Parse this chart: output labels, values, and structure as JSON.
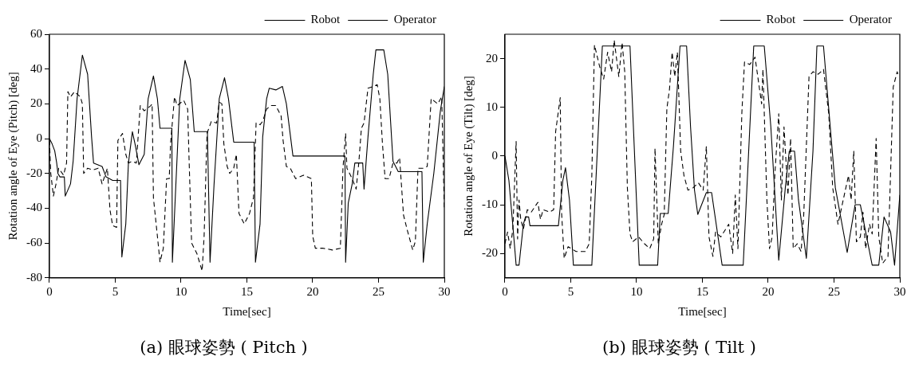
{
  "chart_data": [
    {
      "type": "line",
      "title": "(a) 眼球姿勢 ( Pitch )",
      "xlabel": "Time[sec]",
      "ylabel": "Rotation angle of Eye (Pitch) [deg]",
      "xlim": [
        0,
        30
      ],
      "xticks": [
        0,
        5,
        10,
        15,
        20,
        25,
        30
      ],
      "ylim": [
        -80,
        60
      ],
      "yticks": [
        -80,
        -60,
        -40,
        -20,
        0,
        20,
        40,
        60
      ],
      "grid": false,
      "legend": "top right",
      "marker": "none",
      "series": [
        {
          "name": "Robot",
          "color": "#000000",
          "line_style": "solid",
          "x": [
            0,
            0.2,
            0.4,
            0.55,
            0.64,
            0.8,
            1.13,
            1.2,
            1.6,
            1.8,
            2.1,
            2.5,
            2.9,
            3.2,
            3.35,
            4,
            4.3,
            4.8,
            5.4,
            5.5,
            5.8,
            6,
            6.3,
            6.5,
            6.8,
            7.2,
            7.5,
            7.9,
            8.2,
            8.4,
            9.3,
            9.34,
            9.6,
            9.9,
            10.3,
            10.7,
            11,
            12,
            12.2,
            12.5,
            12.9,
            13.3,
            13.6,
            14,
            15.55,
            15.65,
            16,
            16.2,
            16.5,
            16.7,
            17.2,
            17.7,
            18,
            18.5,
            22.45,
            22.5,
            22.7,
            23,
            23.2,
            23.8,
            23.9,
            24.2,
            24.6,
            24.8,
            25.4,
            25.7,
            26.1,
            26.5,
            26.8,
            28.3,
            28.4,
            28.7,
            29.2,
            29.7,
            30
          ],
          "values": [
            0,
            -3,
            -7,
            -14,
            -20,
            -22,
            -22,
            -33,
            -26,
            -13,
            23,
            48,
            37,
            1,
            -14,
            -16,
            -22,
            -24,
            -24,
            -68,
            -49,
            -14,
            4,
            -3,
            -15,
            -9,
            23,
            36,
            23,
            6,
            6,
            -71,
            -27,
            23,
            45,
            34,
            4,
            4,
            -71,
            -27,
            23,
            35,
            23,
            -2,
            -2,
            -71,
            -49,
            1,
            23,
            29,
            28,
            30,
            20,
            -10,
            -10,
            -71,
            -37,
            -26,
            -14,
            -14,
            -29,
            1,
            37,
            51,
            51,
            37,
            -13,
            -19,
            -19,
            -19,
            -71,
            -49,
            -20,
            16,
            30
          ]
        },
        {
          "name": "Operator",
          "color": "#000000",
          "line_style": "dashed",
          "x": [
            0,
            0.1,
            0.3,
            0.5,
            0.7,
            1.07,
            1.3,
            1.4,
            1.6,
            1.9,
            2.35,
            2.5,
            2.6,
            2.9,
            3.3,
            3.7,
            4,
            4.4,
            4.6,
            4.8,
            5.1,
            5.2,
            5.55,
            5.8,
            6,
            6.3,
            6.6,
            6.9,
            7.2,
            7.7,
            7.8,
            7.9,
            8.2,
            8.4,
            8.65,
            8.9,
            9.1,
            9.2,
            9.5,
            9.7,
            10.2,
            10.5,
            10.6,
            10.8,
            11.2,
            11.6,
            11.75,
            11.97,
            12.3,
            12.7,
            12.9,
            13.1,
            13.25,
            13.5,
            13.7,
            14,
            14.2,
            14.4,
            14.8,
            15.2,
            15.5,
            15.7,
            16,
            16.2,
            16.5,
            16.8,
            17.2,
            17.6,
            17.75,
            18,
            18.3,
            18.7,
            19.3,
            19.9,
            20,
            20.2,
            20.8,
            21.5,
            22.1,
            22.3,
            22.5,
            22.6,
            23,
            23.3,
            23.5,
            23.7,
            23.9,
            24.2,
            24.6,
            24.9,
            25.1,
            25.3,
            25.5,
            25.8,
            26.1,
            26.4,
            26.6,
            26.9,
            27.2,
            27.6,
            27.8,
            28,
            28.4,
            28.7,
            29,
            29.5,
            29.8,
            30
          ],
          "values": [
            -1,
            -20,
            -33,
            -26,
            -17,
            -21,
            -14,
            27,
            24,
            27,
            24,
            20,
            -20,
            -17,
            -18,
            -17,
            -26,
            -17,
            -41,
            -50,
            -51,
            -1,
            3,
            -9,
            -14,
            -13,
            -14,
            19,
            16,
            19,
            20,
            -34,
            -56,
            -71,
            -63,
            -23,
            -23,
            -3,
            24,
            19,
            22,
            17,
            -10,
            -60,
            -66,
            -76,
            -56,
            3,
            10,
            9,
            21,
            20,
            -3,
            -16,
            -20,
            -17,
            -9,
            -43,
            -49,
            -43,
            -34,
            9,
            8,
            10,
            17,
            19,
            19,
            13,
            -1,
            -16,
            -17,
            -23,
            -21,
            -23,
            -56,
            -63,
            -63,
            -64,
            -63,
            -17,
            3,
            -17,
            -23,
            -29,
            -14,
            6,
            9,
            29,
            30,
            31,
            23,
            -3,
            -23,
            -23,
            -14,
            -14,
            -11,
            -44,
            -53,
            -64,
            -59,
            -17,
            -17,
            -16,
            23,
            20,
            24,
            -41
          ]
        }
      ]
    },
    {
      "type": "line",
      "title": "(b) 眼球姿勢 ( Tilt )",
      "xlabel": "Time[sec]",
      "ylabel": "Rotation angle of Eye (Tilt) [deg]",
      "xlim": [
        0,
        30
      ],
      "xticks": [
        0,
        5,
        10,
        15,
        20,
        25,
        30
      ],
      "ylim": [
        -25,
        25
      ],
      "yticks": [
        -20,
        -10,
        0,
        10,
        20
      ],
      "grid": false,
      "legend": "top right",
      "marker": "none",
      "series": [
        {
          "name": "Robot",
          "color": "#000000",
          "line_style": "solid",
          "x": [
            0,
            0.3,
            0.64,
            0.85,
            1.07,
            1.4,
            1.56,
            1.8,
            1.9,
            4.06,
            4.4,
            4.6,
            4.9,
            5.2,
            6.6,
            7.4,
            9.5,
            10.2,
            11.6,
            11.8,
            12.4,
            12.8,
            13.3,
            13.8,
            14.1,
            14.4,
            14.65,
            15.3,
            15.7,
            16.5,
            18.1,
            18.9,
            19.7,
            20.2,
            20.8,
            21.3,
            21.6,
            22,
            22.3,
            22.9,
            23.4,
            23.7,
            24.2,
            25.1,
            26,
            26.6,
            27,
            27.9,
            28.4,
            28.8,
            29.3,
            29.6,
            30
          ],
          "values": [
            0,
            -5,
            -15.6,
            -22.4,
            -22.4,
            -14,
            -12.5,
            -12.5,
            -14.3,
            -14.3,
            -5,
            -2.4,
            -9,
            -22.4,
            -22.4,
            22.6,
            22.6,
            -22.4,
            -22.4,
            -11.8,
            -11.8,
            2,
            22.6,
            22.6,
            6,
            -7,
            -12,
            -7.5,
            -7.5,
            -22.4,
            -22.4,
            22.6,
            22.6,
            6,
            -21.4,
            -6.5,
            1,
            1,
            -9,
            -21,
            1,
            22.6,
            22.6,
            -6.5,
            -19.8,
            -10,
            -10,
            -22.4,
            -22.4,
            -12.5,
            -15.6,
            -22.4,
            -8
          ]
        },
        {
          "name": "Operator",
          "color": "#000000",
          "line_style": "dashed",
          "x": [
            0,
            0.2,
            0.4,
            0.6,
            0.85,
            0.96,
            1.07,
            1.2,
            1.4,
            1.7,
            2,
            2.5,
            2.7,
            2.9,
            3.4,
            3.7,
            3.85,
            4.2,
            4.3,
            4.5,
            4.8,
            5.4,
            6.1,
            6.4,
            6.6,
            6.8,
            7.2,
            7.5,
            7.8,
            8.1,
            8.3,
            8.65,
            8.9,
            9.1,
            9.3,
            9.5,
            9.7,
            10.15,
            10.6,
            11,
            11.3,
            11.4,
            11.65,
            11.9,
            12.1,
            12.3,
            12.5,
            12.7,
            12.9,
            13.1,
            13.35,
            13.6,
            13.9,
            14.3,
            14.7,
            15.06,
            15.3,
            15.5,
            15.8,
            16,
            16.4,
            17,
            17.3,
            17.5,
            17.7,
            18,
            18.2,
            18.6,
            19,
            19.5,
            19.6,
            19.9,
            20.1,
            20.3,
            20.5,
            20.8,
            21,
            21.2,
            21.5,
            21.7,
            21.9,
            22.2,
            22.5,
            22.7,
            23.1,
            23.4,
            23.8,
            24.2,
            24.6,
            24.9,
            25.3,
            25.7,
            26.1,
            26.3,
            26.5,
            26.7,
            27,
            27.2,
            27.4,
            27.7,
            27.9,
            28.2,
            28.4,
            28.7,
            29.1,
            29.5,
            29.8,
            29.9
          ],
          "values": [
            -18,
            -15.6,
            -19,
            -15,
            3,
            -17,
            -9,
            -13,
            -15,
            -11,
            -11.5,
            -9.5,
            -13,
            -11,
            -11.5,
            -11,
            5,
            12,
            -11.5,
            -21,
            -18.6,
            -19.6,
            -19.6,
            -18,
            -4,
            22.8,
            18.3,
            15.8,
            21.3,
            17.3,
            23.8,
            16.3,
            23.3,
            17.3,
            -6.5,
            -16,
            -17.6,
            -16.6,
            -18,
            -19,
            -17,
            1.6,
            -18,
            -14,
            -12,
            9.7,
            13.7,
            21.3,
            16.3,
            21.3,
            1,
            -4,
            -7,
            -6.5,
            -5.5,
            -7,
            2,
            -16.6,
            -20.6,
            -15.6,
            -16.6,
            -14,
            -20,
            -8,
            -19,
            9,
            19.3,
            18.8,
            20.3,
            10.7,
            17.8,
            -9,
            -19,
            -16.6,
            -4,
            8.7,
            -9,
            6,
            -8,
            3.6,
            -19,
            -18,
            -19.6,
            -12,
            16.3,
            17.3,
            16.8,
            17.8,
            8.7,
            -6.5,
            -14,
            -9,
            -4,
            -9,
            1,
            -17.6,
            -16.6,
            -11.5,
            -19,
            -14,
            -16,
            3.6,
            -16.6,
            -22,
            -20.6,
            14.2,
            17.3,
            16.3
          ]
        }
      ]
    }
  ]
}
